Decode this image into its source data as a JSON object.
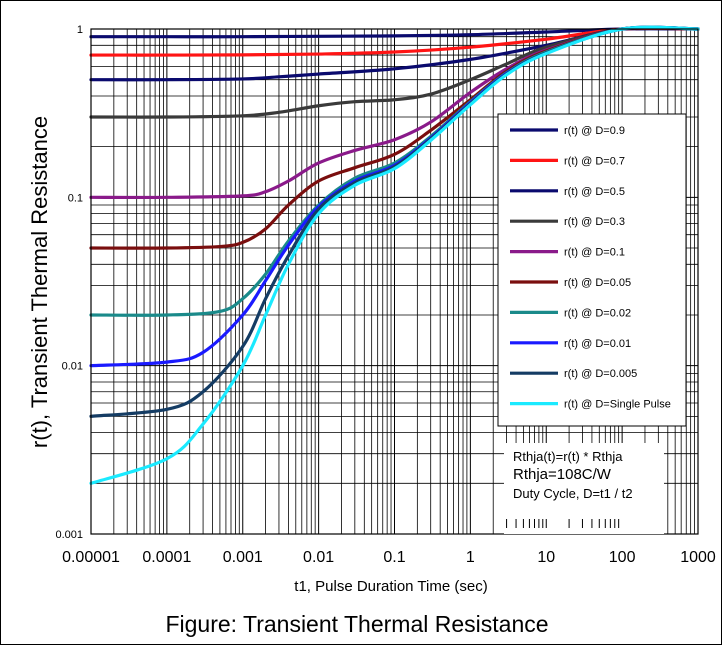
{
  "chart_data": {
    "type": "line",
    "xscale": "log",
    "yscale": "log",
    "xlim": [
      1e-05,
      1000
    ],
    "ylim": [
      0.001,
      1
    ],
    "grid": true,
    "title": "Figure:  Transient Thermal Resistance",
    "xlabel": "t1, Pulse Duration Time (sec)",
    "ylabel": "r(t),  Transient Thermal Resistance",
    "x_ticks": [
      "0.00001",
      "0.0001",
      "0.001",
      "0.01",
      "0.1",
      "1",
      "10",
      "100",
      "1000"
    ],
    "y_ticks": [
      "0.001",
      "0.01",
      "0.1",
      "1"
    ],
    "legend_position": "right",
    "series": [
      {
        "name": "r(t) @ D=0.9",
        "color": "#0a0a6e",
        "points": [
          [
            1e-05,
            0.9
          ],
          [
            0.0001,
            0.9
          ],
          [
            0.001,
            0.9
          ],
          [
            0.01,
            0.905
          ],
          [
            0.1,
            0.91
          ],
          [
            1,
            0.925
          ],
          [
            10,
            0.96
          ],
          [
            100,
            1
          ],
          [
            1000,
            1
          ]
        ]
      },
      {
        "name": "r(t) @ D=0.7",
        "color": "#ff1414",
        "points": [
          [
            1e-05,
            0.7
          ],
          [
            0.0001,
            0.7
          ],
          [
            0.001,
            0.702
          ],
          [
            0.01,
            0.71
          ],
          [
            0.1,
            0.73
          ],
          [
            1,
            0.78
          ],
          [
            10,
            0.87
          ],
          [
            100,
            1
          ],
          [
            1000,
            1
          ]
        ]
      },
      {
        "name": "r(t) @ D=0.5",
        "color": "#0a0a6e",
        "points": [
          [
            1e-05,
            0.5
          ],
          [
            0.0001,
            0.5
          ],
          [
            0.001,
            0.505
          ],
          [
            0.003,
            0.52
          ],
          [
            0.01,
            0.54
          ],
          [
            0.1,
            0.58
          ],
          [
            1,
            0.66
          ],
          [
            10,
            0.8
          ],
          [
            100,
            1
          ],
          [
            1000,
            1
          ]
        ]
      },
      {
        "name": "r(t) @ D=0.3",
        "color": "#3a3a3a",
        "points": [
          [
            1e-05,
            0.3
          ],
          [
            0.0001,
            0.3
          ],
          [
            0.001,
            0.305
          ],
          [
            0.003,
            0.32
          ],
          [
            0.01,
            0.35
          ],
          [
            0.03,
            0.37
          ],
          [
            0.1,
            0.38
          ],
          [
            0.3,
            0.41
          ],
          [
            1,
            0.5
          ],
          [
            3,
            0.62
          ],
          [
            10,
            0.78
          ],
          [
            100,
            1
          ],
          [
            1000,
            1
          ]
        ]
      },
      {
        "name": "r(t) @ D=0.1",
        "color": "#8a1a8a",
        "points": [
          [
            1e-05,
            0.1
          ],
          [
            0.0001,
            0.1
          ],
          [
            0.001,
            0.102
          ],
          [
            0.002,
            0.108
          ],
          [
            0.004,
            0.125
          ],
          [
            0.01,
            0.16
          ],
          [
            0.03,
            0.19
          ],
          [
            0.1,
            0.22
          ],
          [
            0.3,
            0.28
          ],
          [
            1,
            0.42
          ],
          [
            3,
            0.58
          ],
          [
            10,
            0.75
          ],
          [
            100,
            1
          ],
          [
            1000,
            1
          ]
        ]
      },
      {
        "name": "r(t) @ D=0.05",
        "color": "#7a0e0e",
        "points": [
          [
            1e-05,
            0.05
          ],
          [
            0.0001,
            0.05
          ],
          [
            0.0005,
            0.051
          ],
          [
            0.001,
            0.054
          ],
          [
            0.002,
            0.065
          ],
          [
            0.004,
            0.09
          ],
          [
            0.01,
            0.125
          ],
          [
            0.03,
            0.15
          ],
          [
            0.1,
            0.18
          ],
          [
            0.3,
            0.25
          ],
          [
            1,
            0.38
          ],
          [
            3,
            0.56
          ],
          [
            10,
            0.74
          ],
          [
            100,
            1
          ],
          [
            1000,
            1
          ]
        ]
      },
      {
        "name": "r(t) @ D=0.02",
        "color": "#1a8a8a",
        "points": [
          [
            1e-05,
            0.02
          ],
          [
            0.0001,
            0.02
          ],
          [
            0.0005,
            0.021
          ],
          [
            0.001,
            0.025
          ],
          [
            0.002,
            0.035
          ],
          [
            0.004,
            0.055
          ],
          [
            0.01,
            0.09
          ],
          [
            0.03,
            0.13
          ],
          [
            0.1,
            0.16
          ],
          [
            0.3,
            0.23
          ],
          [
            1,
            0.37
          ],
          [
            3,
            0.55
          ],
          [
            10,
            0.73
          ],
          [
            100,
            1
          ],
          [
            1000,
            1
          ]
        ]
      },
      {
        "name": "r(t) @ D=0.01",
        "color": "#1a1aff",
        "points": [
          [
            1e-05,
            0.01
          ],
          [
            0.0001,
            0.0105
          ],
          [
            0.0003,
            0.012
          ],
          [
            0.001,
            0.02
          ],
          [
            0.002,
            0.032
          ],
          [
            0.004,
            0.052
          ],
          [
            0.01,
            0.088
          ],
          [
            0.03,
            0.125
          ],
          [
            0.1,
            0.155
          ],
          [
            0.3,
            0.225
          ],
          [
            1,
            0.365
          ],
          [
            3,
            0.545
          ],
          [
            10,
            0.72
          ],
          [
            100,
            1
          ],
          [
            1000,
            1
          ]
        ]
      },
      {
        "name": "r(t) @ D=0.005",
        "color": "#143c64",
        "points": [
          [
            1e-05,
            0.005
          ],
          [
            0.0001,
            0.0055
          ],
          [
            0.0003,
            0.007
          ],
          [
            0.001,
            0.013
          ],
          [
            0.002,
            0.025
          ],
          [
            0.004,
            0.045
          ],
          [
            0.01,
            0.085
          ],
          [
            0.03,
            0.122
          ],
          [
            0.1,
            0.152
          ],
          [
            0.3,
            0.222
          ],
          [
            1,
            0.36
          ],
          [
            3,
            0.54
          ],
          [
            10,
            0.72
          ],
          [
            100,
            1
          ],
          [
            1000,
            1
          ]
        ]
      },
      {
        "name": "r(t) @ D=Single Pulse",
        "color": "#1aeaff",
        "points": [
          [
            1e-05,
            0.002
          ],
          [
            0.0001,
            0.0028
          ],
          [
            0.0003,
            0.0045
          ],
          [
            0.001,
            0.01
          ],
          [
            0.002,
            0.02
          ],
          [
            0.004,
            0.04
          ],
          [
            0.01,
            0.08
          ],
          [
            0.03,
            0.118
          ],
          [
            0.1,
            0.148
          ],
          [
            0.3,
            0.218
          ],
          [
            1,
            0.355
          ],
          [
            3,
            0.535
          ],
          [
            10,
            0.715
          ],
          [
            100,
            1
          ],
          [
            1000,
            1
          ]
        ]
      }
    ],
    "annotations": [
      "Rthja(t)=r(t) * Rthja",
      "Rthja=108C/W",
      "Duty Cycle, D=t1 /  t2"
    ]
  }
}
